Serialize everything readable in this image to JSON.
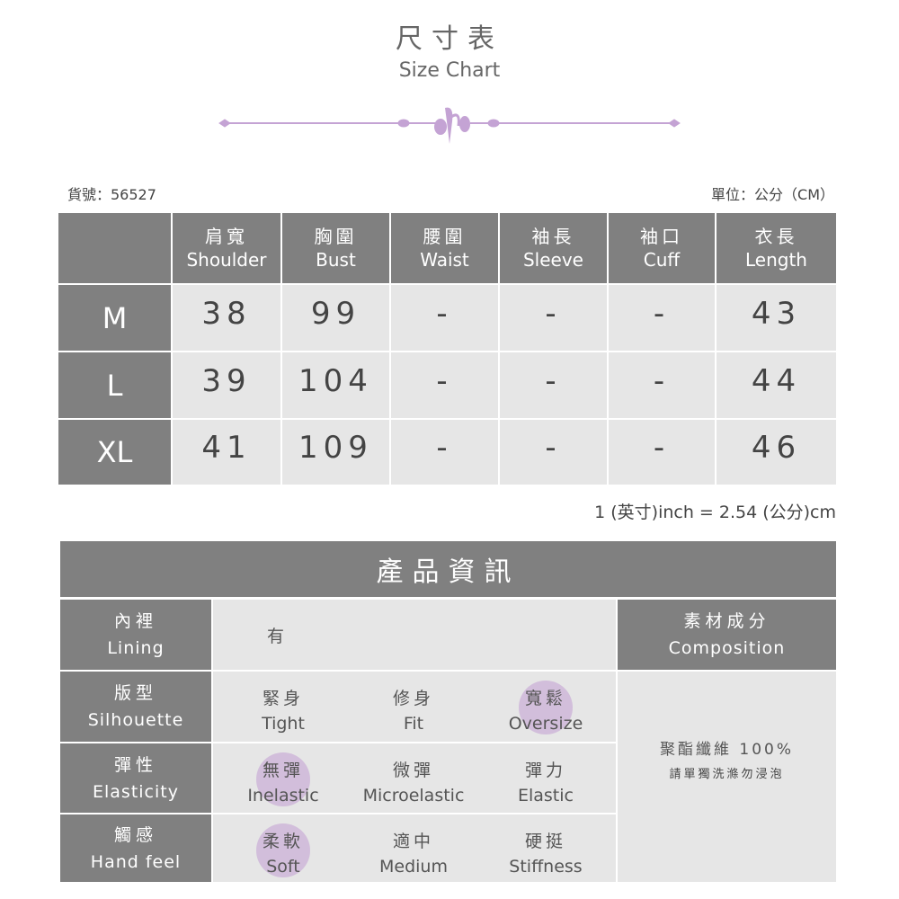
{
  "header": {
    "title_zh": "尺寸表",
    "title_en": "Size Chart",
    "accent": "#c4a3d4"
  },
  "meta": {
    "item_no": "貨號：56527",
    "unit": "單位：公分（CM）"
  },
  "size_table": {
    "columns": [
      {
        "zh": "肩寬",
        "en": "Shoulder"
      },
      {
        "zh": "胸圍",
        "en": "Bust"
      },
      {
        "zh": "腰圍",
        "en": "Waist"
      },
      {
        "zh": "袖長",
        "en": "Sleeve"
      },
      {
        "zh": "袖口",
        "en": "Cuff"
      },
      {
        "zh": "衣長",
        "en": "Length"
      }
    ],
    "rows": [
      {
        "size": "M",
        "values": [
          "38",
          "99",
          "-",
          "-",
          "-",
          "43"
        ]
      },
      {
        "size": "L",
        "values": [
          "39",
          "104",
          "-",
          "-",
          "-",
          "44"
        ]
      },
      {
        "size": "XL",
        "values": [
          "41",
          "109",
          "-",
          "-",
          "-",
          "46"
        ]
      }
    ]
  },
  "conversion_note": "1 (英寸)inch = 2.54 (公分)cm",
  "product_info": {
    "title": "產品資訊",
    "lining": {
      "zh": "內裡",
      "en": "Lining",
      "value": "有"
    },
    "composition": {
      "zh": "素材成分",
      "en": "Composition",
      "material": "聚酯纖維 100%",
      "care": "請單獨洗滌勿浸泡"
    },
    "attributes": [
      {
        "zh": "版型",
        "en": "Silhouette",
        "options": [
          {
            "zh": "緊身",
            "en": "Tight",
            "selected": false
          },
          {
            "zh": "修身",
            "en": "Fit",
            "selected": false
          },
          {
            "zh": "寬鬆",
            "en": "Oversize",
            "selected": true
          }
        ]
      },
      {
        "zh": "彈性",
        "en": "Elasticity",
        "options": [
          {
            "zh": "無彈",
            "en": "Inelastic",
            "selected": true
          },
          {
            "zh": "微彈",
            "en": "Microelastic",
            "selected": false
          },
          {
            "zh": "彈力",
            "en": "Elastic",
            "selected": false
          }
        ]
      },
      {
        "zh": "觸感",
        "en": "Hand feel",
        "options": [
          {
            "zh": "柔軟",
            "en": "Soft",
            "selected": true
          },
          {
            "zh": "適中",
            "en": "Medium",
            "selected": false
          },
          {
            "zh": "硬挺",
            "en": "Stiffness",
            "selected": false
          }
        ]
      }
    ]
  }
}
